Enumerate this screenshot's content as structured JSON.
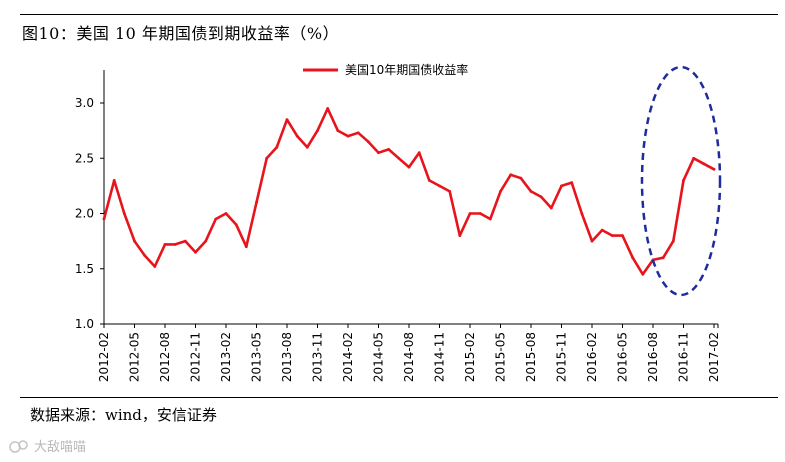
{
  "figure": {
    "title": "图10：美国 10 年期国债到期收益率（%）",
    "source": "数据来源：wind，安信证券",
    "watermark": "大敌喵喵"
  },
  "colors": {
    "series": "#e8141c",
    "annotation": "#1f2c9c",
    "axis": "#000000"
  },
  "chart_data": {
    "type": "line",
    "title": "",
    "xlabel": "",
    "ylabel": "",
    "ylim": [
      1.0,
      3.0
    ],
    "yticks": [
      "1.0",
      "1.5",
      "2.0",
      "2.5",
      "3.0"
    ],
    "xtick_labels": [
      "2012-02",
      "2012-05",
      "2012-08",
      "2012-11",
      "2013-02",
      "2013-05",
      "2013-08",
      "2013-11",
      "2014-02",
      "2014-05",
      "2014-08",
      "2014-11",
      "2015-02",
      "2015-05",
      "2015-08",
      "2015-11",
      "2016-02",
      "2016-05",
      "2016-08",
      "2016-11",
      "2017-02"
    ],
    "legend": {
      "position": "top-center"
    },
    "grid": false,
    "series": [
      {
        "name": "美国10年期国债收益率",
        "x": [
          "2012-02",
          "2012-03",
          "2012-04",
          "2012-05",
          "2012-06",
          "2012-07",
          "2012-08",
          "2012-09",
          "2012-10",
          "2012-11",
          "2012-12",
          "2013-01",
          "2013-02",
          "2013-03",
          "2013-04",
          "2013-05",
          "2013-06",
          "2013-07",
          "2013-08",
          "2013-09",
          "2013-10",
          "2013-11",
          "2013-12",
          "2014-01",
          "2014-02",
          "2014-03",
          "2014-04",
          "2014-05",
          "2014-06",
          "2014-07",
          "2014-08",
          "2014-09",
          "2014-10",
          "2014-11",
          "2014-12",
          "2015-01",
          "2015-02",
          "2015-03",
          "2015-04",
          "2015-05",
          "2015-06",
          "2015-07",
          "2015-08",
          "2015-09",
          "2015-10",
          "2015-11",
          "2015-12",
          "2016-01",
          "2016-02",
          "2016-03",
          "2016-04",
          "2016-05",
          "2016-06",
          "2016-07",
          "2016-08",
          "2016-09",
          "2016-10",
          "2016-11",
          "2016-12",
          "2017-01",
          "2017-02"
        ],
        "values": [
          1.95,
          2.3,
          2.0,
          1.75,
          1.62,
          1.52,
          1.72,
          1.72,
          1.75,
          1.65,
          1.75,
          1.95,
          2.0,
          1.9,
          1.7,
          2.1,
          2.5,
          2.6,
          2.85,
          2.7,
          2.6,
          2.75,
          2.95,
          2.75,
          2.7,
          2.73,
          2.65,
          2.55,
          2.58,
          2.5,
          2.42,
          2.55,
          2.3,
          2.25,
          2.2,
          1.8,
          2.0,
          2.0,
          1.95,
          2.2,
          2.35,
          2.32,
          2.2,
          2.15,
          2.05,
          2.25,
          2.28,
          2.0,
          1.75,
          1.85,
          1.8,
          1.8,
          1.6,
          1.45,
          1.58,
          1.6,
          1.75,
          2.3,
          2.5,
          2.45,
          2.4
        ]
      }
    ]
  }
}
